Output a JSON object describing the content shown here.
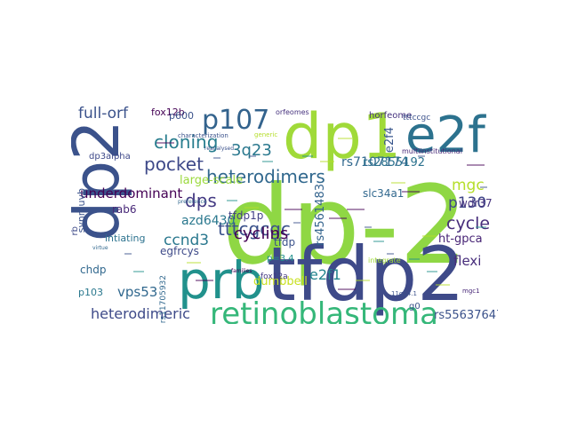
{
  "cloud": {
    "words": [
      {
        "text": "dp-2",
        "color": "#8fd744"
      },
      {
        "text": "dp2",
        "color": "#3b528b",
        "vertical": true
      },
      {
        "text": "tfdp2",
        "color": "#3e4a89"
      },
      {
        "text": "dp1",
        "color": "#a0da39"
      },
      {
        "text": "e2f",
        "color": "#2c728e"
      },
      {
        "text": "prb",
        "color": "#21918c"
      },
      {
        "text": "retinoblastoma",
        "color": "#35b779"
      },
      {
        "text": "p107",
        "color": "#33638d"
      },
      {
        "text": "heterodimers",
        "color": "#31688e"
      },
      {
        "text": "tttcgcgc",
        "color": "#3b528b"
      },
      {
        "text": "cloning",
        "color": "#287d8e"
      },
      {
        "text": "pocket",
        "color": "#3e4989"
      },
      {
        "text": "full-orf",
        "color": "#3b528b"
      },
      {
        "text": "3q23",
        "color": "#2a788e"
      },
      {
        "text": "cyclins",
        "color": "#440154"
      },
      {
        "text": "dps",
        "color": "#443a83"
      },
      {
        "text": "heterodimeric",
        "color": "#3e4a89"
      },
      {
        "text": "p130",
        "color": "#404688"
      },
      {
        "text": "cycle",
        "color": "#472d7b"
      },
      {
        "text": "mgc",
        "color": "#b5de2b"
      },
      {
        "text": "e2f4",
        "color": "#39568c",
        "vertical": true
      },
      {
        "text": "rs7107174",
        "color": "#31688e"
      },
      {
        "text": "rs2855192",
        "color": "#2c728e"
      },
      {
        "text": "ccnd3",
        "color": "#2a788e"
      },
      {
        "text": "e2f1",
        "color": "#25858e"
      },
      {
        "text": "vps53",
        "color": "#31688e"
      },
      {
        "text": "rs4561483",
        "color": "#33638d",
        "vertical": true
      },
      {
        "text": "rs55637647",
        "color": "#3b528b"
      },
      {
        "text": "underdominant",
        "color": "#440154"
      },
      {
        "text": "ht-gpca",
        "color": "#482576"
      },
      {
        "text": "wdr37",
        "color": "#46337e"
      },
      {
        "text": "flexi",
        "color": "#472d7b"
      },
      {
        "text": "azd6430",
        "color": "#2a788e"
      },
      {
        "text": "large-scale",
        "color": "#9bd93c"
      },
      {
        "text": "dumbbell",
        "color": "#c8e020"
      },
      {
        "text": "tfdp1p",
        "color": "#424086"
      },
      {
        "text": "egfrcys",
        "color": "#3e4a89"
      },
      {
        "text": "intiating",
        "color": "#2c728e"
      },
      {
        "text": "rab6",
        "color": "#482878"
      },
      {
        "text": "chdp",
        "color": "#31688e"
      },
      {
        "text": "p103",
        "color": "#2a788e"
      },
      {
        "text": "synmuvb",
        "color": "#3b528b",
        "vertical": true
      },
      {
        "text": "slc34a1",
        "color": "#31688e"
      },
      {
        "text": "tfdp",
        "color": "#3b528b"
      },
      {
        "text": "fox12b",
        "color": "#440154"
      },
      {
        "text": "p600",
        "color": "#3b528b"
      },
      {
        "text": "dp3alpha",
        "color": "#3e4989"
      },
      {
        "text": "horfeome",
        "color": "#46327e"
      },
      {
        "text": "tttccgc",
        "color": "#3b528b"
      },
      {
        "text": "rb",
        "color": "#3e4a89",
        "vertical": true
      },
      {
        "text": "p=3.4",
        "color": "#21918c"
      },
      {
        "text": "fox12a",
        "color": "#443983"
      },
      {
        "text": "g0",
        "color": "#3b528b"
      },
      {
        "text": "rs11705932",
        "color": "#31688e",
        "vertical": true
      },
      {
        "text": "multiinstitutional",
        "color": "#482878"
      },
      {
        "text": "orfeomes",
        "color": "#46327e"
      },
      {
        "text": "characterization",
        "color": "#3b528b"
      },
      {
        "text": "generic",
        "color": "#b5de2b"
      },
      {
        "text": "integrate",
        "color": "#a0da39"
      },
      {
        "text": "11q14.1",
        "color": "#3b528b"
      },
      {
        "text": "mgc1",
        "color": "#482878"
      },
      {
        "text": "virtue",
        "color": "#31688e"
      },
      {
        "text": "families",
        "color": "#440154"
      },
      {
        "text": "reanalysed",
        "color": "#3b528b"
      },
      {
        "text": "preference",
        "color": "#31688e"
      }
    ]
  }
}
